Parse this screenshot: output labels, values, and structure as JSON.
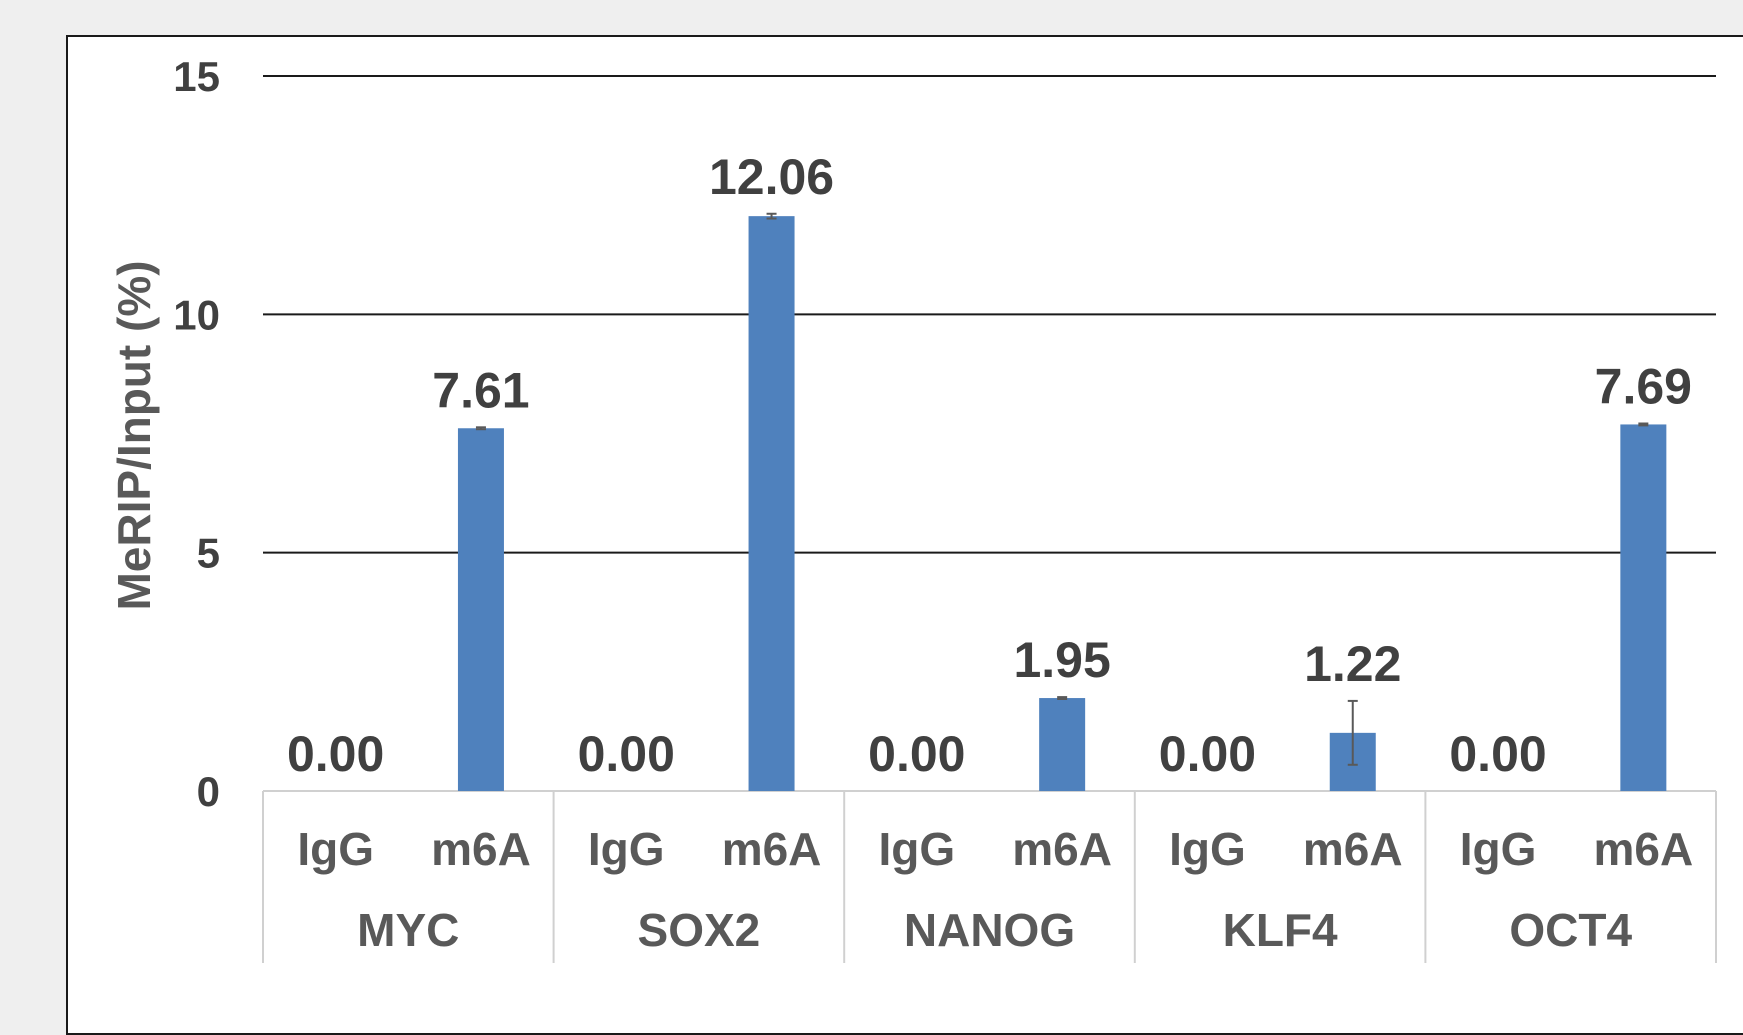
{
  "chart_data": {
    "type": "bar",
    "ylabel": "MeRIP/Input (%)",
    "ylim": [
      0,
      15
    ],
    "yticks": [
      "0",
      "5",
      "10",
      "15"
    ],
    "grid": true,
    "bar_color": "#4f81bd",
    "error_color": "#595959",
    "groups": [
      {
        "name": "MYC",
        "categories": [
          {
            "label": "IgG",
            "value": 0.0,
            "value_label": "0.00",
            "error": 0
          },
          {
            "label": "m6A",
            "value": 7.61,
            "value_label": "7.61",
            "error": 0.02
          }
        ]
      },
      {
        "name": "SOX2",
        "categories": [
          {
            "label": "IgG",
            "value": 0.0,
            "value_label": "0.00",
            "error": 0
          },
          {
            "label": "m6A",
            "value": 12.06,
            "value_label": "12.06",
            "error": 0.05
          }
        ]
      },
      {
        "name": "NANOG",
        "categories": [
          {
            "label": "IgG",
            "value": 0.0,
            "value_label": "0.00",
            "error": 0
          },
          {
            "label": "m6A",
            "value": 1.95,
            "value_label": "1.95",
            "error": 0.02
          }
        ]
      },
      {
        "name": "KLF4",
        "categories": [
          {
            "label": "IgG",
            "value": 0.0,
            "value_label": "0.00",
            "error": 0
          },
          {
            "label": "m6A",
            "value": 1.22,
            "value_label": "1.22",
            "error": 0.67
          }
        ]
      },
      {
        "name": "OCT4",
        "categories": [
          {
            "label": "IgG",
            "value": 0.0,
            "value_label": "0.00",
            "error": 0
          },
          {
            "label": "m6A",
            "value": 7.69,
            "value_label": "7.69",
            "error": 0.02
          }
        ]
      }
    ]
  }
}
